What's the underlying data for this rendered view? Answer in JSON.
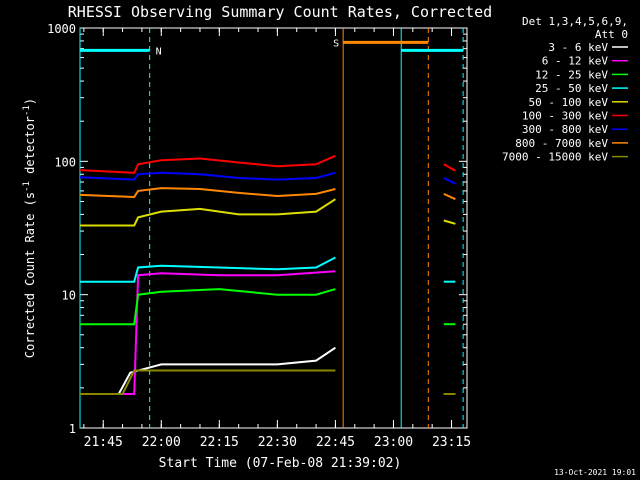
{
  "chart_data": {
    "type": "line",
    "title": "RHESSI Observing Summary Count Rates, Corrected",
    "xlabel": "Start Time (07-Feb-08 21:39:02)",
    "ylabel_parts": [
      "Corrected Count Rate (s",
      "-1",
      " detector",
      "-1",
      ")"
    ],
    "ylabel": "Corrected Count Rate (s-1 detector-1)",
    "yscale": "log",
    "ylim": [
      1,
      1000
    ],
    "xlim": [
      "21:39",
      "23:19"
    ],
    "x_ticks": [
      "21:45",
      "22:00",
      "22:15",
      "22:30",
      "22:45",
      "23:00",
      "23:15"
    ],
    "y_ticks": [
      "1",
      "10",
      "100",
      "1000"
    ],
    "legend_header": [
      "Det 1,3,4,5,6,9,",
      "Att 0"
    ],
    "legend_position": "right",
    "series": [
      {
        "name": "3 - 6 keV",
        "color": "#ffffff",
        "segments": [
          {
            "t": [
              "21:39",
              "21:49",
              "21:52",
              "22:00",
              "22:15",
              "22:30",
              "22:40",
              "22:45"
            ],
            "v": [
              1.8,
              1.8,
              2.6,
              3.0,
              3.0,
              3.0,
              3.2,
              4.0
            ]
          },
          {
            "t": [
              "23:13",
              "23:16"
            ],
            "v": [
              1.8,
              1.8
            ]
          }
        ]
      },
      {
        "name": "6 - 12 keV",
        "color": "#ff00ff",
        "segments": [
          {
            "t": [
              "21:39",
              "21:53",
              "21:54",
              "22:00",
              "22:15",
              "22:30",
              "22:45"
            ],
            "v": [
              1.8,
              1.8,
              14,
              14.5,
              14,
              14,
              15
            ]
          },
          {
            "t": [
              "23:13",
              "23:16"
            ],
            "v": [
              1.8,
              1.8
            ]
          }
        ]
      },
      {
        "name": "12 - 25 keV",
        "color": "#00ff00",
        "segments": [
          {
            "t": [
              "21:39",
              "21:53",
              "21:54",
              "22:00",
              "22:15",
              "22:30",
              "22:40",
              "22:45"
            ],
            "v": [
              6.0,
              6.0,
              10,
              10.5,
              11,
              10,
              10,
              11
            ]
          },
          {
            "t": [
              "23:13",
              "23:16"
            ],
            "v": [
              6.0,
              6.0
            ]
          }
        ]
      },
      {
        "name": "25 - 50 keV",
        "color": "#00ffff",
        "segments": [
          {
            "t": [
              "21:39",
              "21:53",
              "21:54",
              "22:00",
              "22:15",
              "22:30",
              "22:40",
              "22:45"
            ],
            "v": [
              12.5,
              12.5,
              16,
              16.5,
              16,
              15.5,
              16,
              19
            ]
          },
          {
            "t": [
              "23:13",
              "23:16"
            ],
            "v": [
              12.5,
              12.5
            ]
          }
        ]
      },
      {
        "name": "50 - 100 keV",
        "color": "#dddd00",
        "segments": [
          {
            "t": [
              "21:39",
              "21:53",
              "21:54",
              "22:00",
              "22:10",
              "22:20",
              "22:30",
              "22:40",
              "22:45"
            ],
            "v": [
              33,
              33,
              38,
              42,
              44,
              40,
              40,
              42,
              52
            ]
          },
          {
            "t": [
              "23:13",
              "23:16"
            ],
            "v": [
              36,
              34
            ]
          }
        ]
      },
      {
        "name": "100 - 300 keV",
        "color": "#ff0000",
        "segments": [
          {
            "t": [
              "21:39",
              "21:53",
              "21:54",
              "22:00",
              "22:10",
              "22:20",
              "22:30",
              "22:40",
              "22:45"
            ],
            "v": [
              86,
              82,
              95,
              102,
              105,
              98,
              92,
              95,
              110
            ]
          },
          {
            "t": [
              "23:13",
              "23:16"
            ],
            "v": [
              95,
              85
            ]
          }
        ]
      },
      {
        "name": "300 - 800 keV",
        "color": "#0000ff",
        "segments": [
          {
            "t": [
              "21:39",
              "21:53",
              "21:54",
              "22:00",
              "22:10",
              "22:20",
              "22:30",
              "22:40",
              "22:45"
            ],
            "v": [
              76,
              73,
              80,
              82,
              80,
              75,
              73,
              75,
              82
            ]
          },
          {
            "t": [
              "23:13",
              "23:16"
            ],
            "v": [
              75,
              68
            ]
          }
        ]
      },
      {
        "name": "800 - 7000 keV",
        "color": "#ff8800",
        "segments": [
          {
            "t": [
              "21:39",
              "21:53",
              "21:54",
              "22:00",
              "22:10",
              "22:20",
              "22:30",
              "22:40",
              "22:45"
            ],
            "v": [
              56,
              54,
              60,
              63,
              62,
              58,
              55,
              57,
              62
            ]
          },
          {
            "t": [
              "23:13",
              "23:16"
            ],
            "v": [
              57,
              52
            ]
          }
        ]
      },
      {
        "name": "7000 - 15000 keV",
        "color": "#888800",
        "segments": [
          {
            "t": [
              "21:39",
              "21:50",
              "21:53",
              "22:00",
              "22:15",
              "22:30",
              "22:45"
            ],
            "v": [
              1.8,
              1.8,
              2.7,
              2.7,
              2.7,
              2.7,
              2.7
            ]
          },
          {
            "t": [
              "23:13",
              "23:16"
            ],
            "v": [
              1.8,
              1.8
            ]
          }
        ]
      }
    ],
    "flag_lines": [
      {
        "label": "N",
        "color": "#00ffff",
        "start": "21:39",
        "end": "21:57",
        "level": 680
      },
      {
        "label": "",
        "color": "#00ffff",
        "start": "23:02",
        "end": "23:18",
        "level": 680
      },
      {
        "label": "S",
        "color": "#ff8800",
        "start": "22:47",
        "end": "23:09",
        "level": 780
      }
    ],
    "markers": [
      {
        "t": "21:39",
        "color": "#00ffff",
        "style": "solid"
      },
      {
        "t": "21:57",
        "color": "#00ffff",
        "style": "dashed"
      },
      {
        "t": "22:47",
        "color": "#ff8800",
        "style": "solid"
      },
      {
        "t": "23:02",
        "color": "#00ffff",
        "style": "solid"
      },
      {
        "t": "23:09",
        "color": "#ff8800",
        "style": "dashed"
      },
      {
        "t": "23:18",
        "color": "#00ffff",
        "style": "dashed"
      }
    ],
    "timestamp": "13-Oct-2021 19:01"
  }
}
